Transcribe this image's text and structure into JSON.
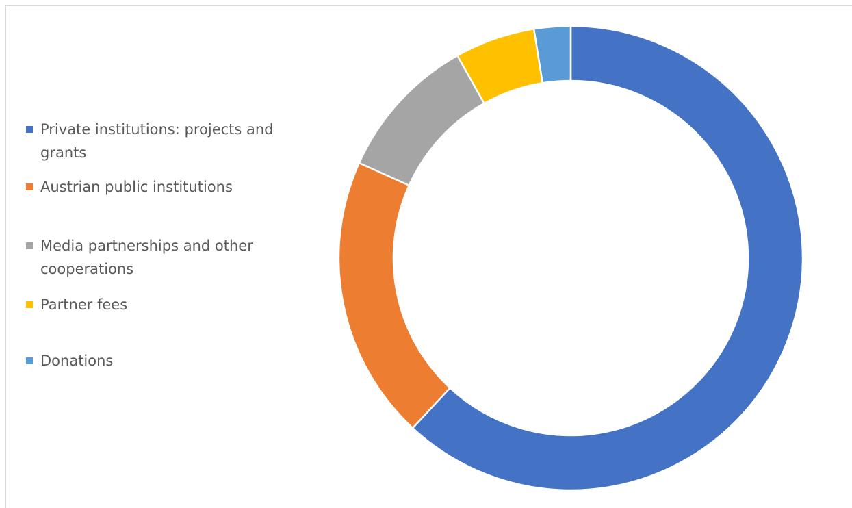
{
  "chart_data": {
    "type": "pie",
    "variant": "donut",
    "title": "",
    "legend_position": "left",
    "categories": [
      "Private institutions: projects and grants",
      "Austrian public institutions",
      "Media partnerships and other cooperations",
      "Partner fees",
      "Donations"
    ],
    "values": [
      61.0,
      19.5,
      10.0,
      5.5,
      2.5
    ],
    "colors": [
      "#4472c4",
      "#ed7d31",
      "#a5a5a5",
      "#ffc000",
      "#5b9bd5"
    ]
  }
}
